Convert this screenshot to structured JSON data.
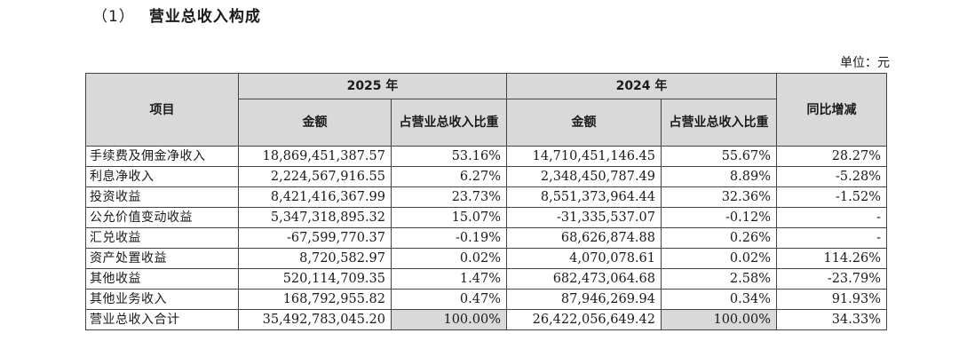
{
  "heading": {
    "number": "（1）",
    "title": "营业总收入构成"
  },
  "unit": "单位：元",
  "table": {
    "header": {
      "item": "项目",
      "year_2025": "2025 年",
      "year_2024": "2024 年",
      "yoy": "同比增减",
      "amount": "金额",
      "share": "占营业总收入比重"
    },
    "rows": [
      {
        "label": "手续费及佣金净收入",
        "amt2025": "18,869,451,387.57",
        "pct2025": "53.16%",
        "amt2024": "14,710,451,146.45",
        "pct2024": "55.67%",
        "yoy": "28.27%"
      },
      {
        "label": "利息净收入",
        "amt2025": "2,224,567,916.55",
        "pct2025": "6.27%",
        "amt2024": "2,348,450,787.49",
        "pct2024": "8.89%",
        "yoy": "-5.28%"
      },
      {
        "label": "投资收益",
        "amt2025": "8,421,416,367.99",
        "pct2025": "23.73%",
        "amt2024": "8,551,373,964.44",
        "pct2024": "32.36%",
        "yoy": "-1.52%"
      },
      {
        "label": "公允价值变动收益",
        "amt2025": "5,347,318,895.32",
        "pct2025": "15.07%",
        "amt2024": "-31,335,537.07",
        "pct2024": "-0.12%",
        "yoy": "-"
      },
      {
        "label": "汇兑收益",
        "amt2025": "-67,599,770.37",
        "pct2025": "-0.19%",
        "amt2024": "68,626,874.88",
        "pct2024": "0.26%",
        "yoy": "-"
      },
      {
        "label": "资产处置收益",
        "amt2025": "8,720,582.97",
        "pct2025": "0.02%",
        "amt2024": "4,070,078.61",
        "pct2024": "0.02%",
        "yoy": "114.26%"
      },
      {
        "label": "其他收益",
        "amt2025": "520,114,709.35",
        "pct2025": "1.47%",
        "amt2024": "682,473,064.68",
        "pct2024": "2.58%",
        "yoy": "-23.79%"
      },
      {
        "label": "其他业务收入",
        "amt2025": "168,792,955.82",
        "pct2025": "0.47%",
        "amt2024": "87,946,269.94",
        "pct2024": "0.34%",
        "yoy": "91.93%"
      }
    ],
    "total": {
      "label": "营业总收入合计",
      "amt2025": "35,492,783,045.20",
      "pct2025": "100.00%",
      "amt2024": "26,422,056,649.42",
      "pct2024": "100.00%",
      "yoy": "34.33%"
    }
  }
}
